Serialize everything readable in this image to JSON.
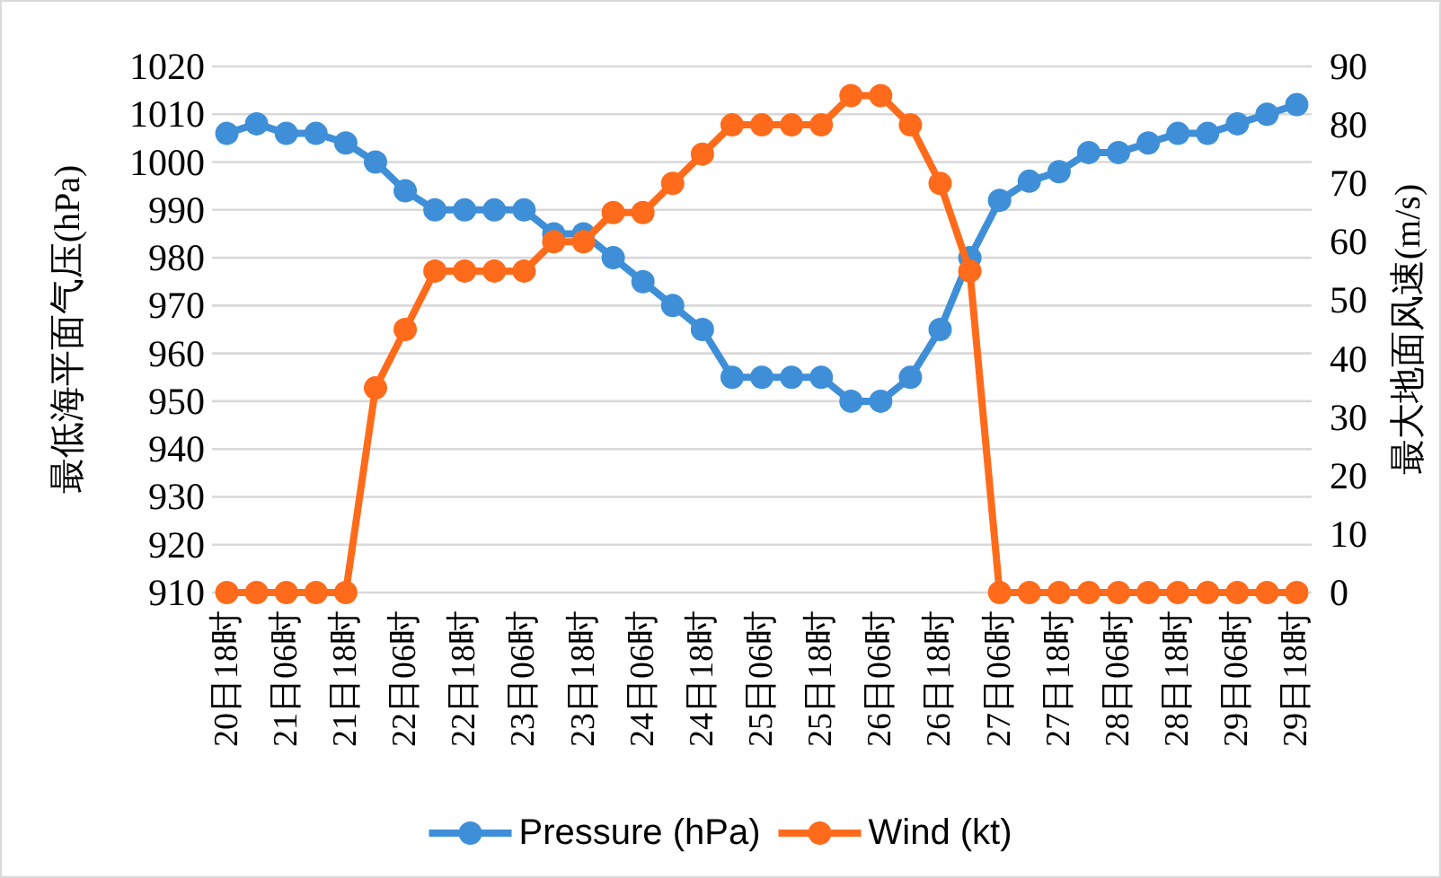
{
  "chart_data": {
    "type": "line",
    "categories": [
      "20日18时",
      null,
      "21日06时",
      null,
      "21日18时",
      null,
      "22日06时",
      null,
      "22日18时",
      null,
      "23日06时",
      null,
      "23日18时",
      null,
      "24日06时",
      null,
      "24日18时",
      null,
      "25日06时",
      null,
      "25日18时",
      null,
      "26日06时",
      null,
      "26日18时",
      null,
      "27日06时",
      null,
      "27日18时",
      null,
      "28日06时",
      null,
      "28日18时",
      null,
      "29日06时",
      null,
      "29日18时"
    ],
    "series": [
      {
        "name": "Pressure (hPa)",
        "color": "#3f8fd8",
        "values": [
          1006,
          1008,
          1006,
          1006,
          1004,
          1000,
          994,
          990,
          990,
          990,
          990,
          985,
          985,
          980,
          975,
          970,
          965,
          955,
          955,
          955,
          955,
          950,
          950,
          955,
          965,
          980,
          992,
          996,
          998,
          1002,
          1002,
          1004,
          1006,
          1006,
          1008,
          1010,
          1012
        ]
      },
      {
        "name": "Wind (kt)",
        "color": "#ff6b1a",
        "axis": "y2",
        "values": [
          0,
          0,
          0,
          0,
          0,
          35,
          45,
          55,
          55,
          55,
          55,
          60,
          60,
          65,
          65,
          70,
          75,
          80,
          80,
          80,
          80,
          85,
          85,
          80,
          70,
          55,
          0,
          0,
          0,
          0,
          0,
          0,
          0,
          0,
          0,
          0,
          0
        ]
      }
    ],
    "ylabel": "最低海平面气压(hPa)",
    "y2label": "最大地面风速(m/s)",
    "ylim": [
      910,
      1020
    ],
    "yticks": [
      910,
      920,
      930,
      940,
      950,
      960,
      970,
      980,
      990,
      1000,
      1010,
      1020
    ],
    "y2lim": [
      0,
      90
    ],
    "y2ticks": [
      0,
      10,
      20,
      30,
      40,
      50,
      60,
      70,
      80,
      90
    ],
    "grid": "y",
    "legend": "bottom",
    "marker": "circle",
    "line_style": "solid"
  }
}
